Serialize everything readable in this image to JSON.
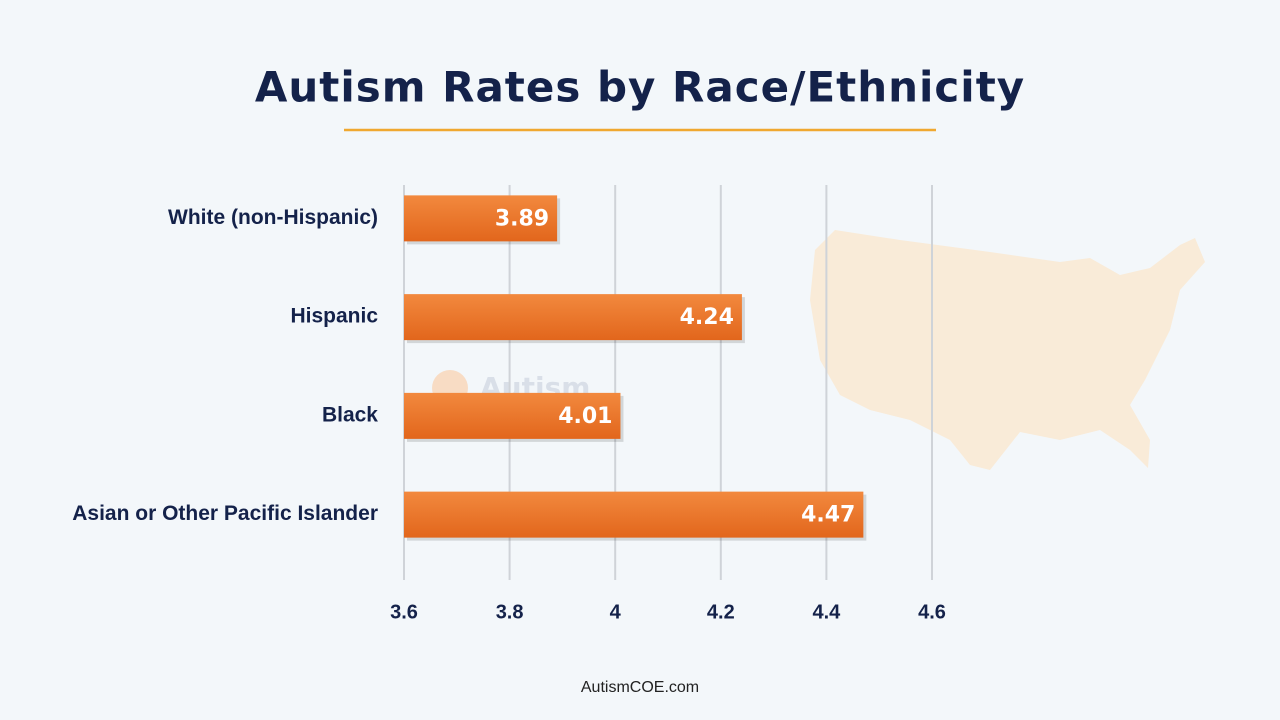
{
  "chart_data": {
    "type": "bar",
    "orientation": "horizontal",
    "title": "Autism Rates by Race/Ethnicity",
    "categories": [
      "White (non-Hispanic)",
      "Hispanic",
      "Black",
      "Asian or Other Pacific Islander"
    ],
    "values": [
      3.89,
      4.24,
      4.01,
      4.47
    ],
    "color": "#ec7526",
    "xlim": [
      3.6,
      4.6
    ],
    "xticks": [
      3.6,
      3.8,
      4,
      4.2,
      4.4,
      4.6
    ],
    "grid": true,
    "watermark": "Autism",
    "footer": "AutismCOE.com"
  }
}
